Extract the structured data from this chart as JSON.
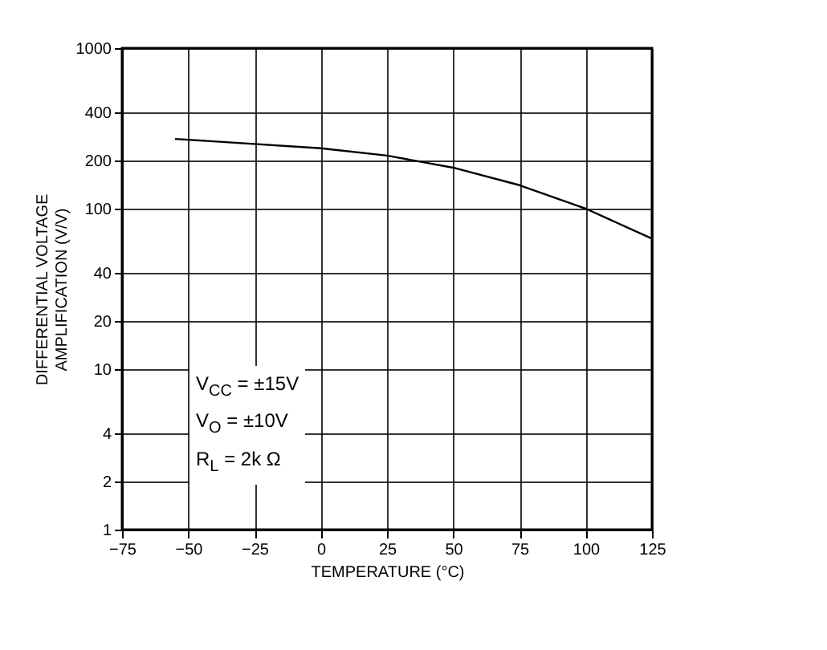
{
  "chart_data": {
    "type": "line",
    "xlabel": "TEMPERATURE (°C)",
    "ylabel": "DIFFERENTIAL VOLTAGE\nAMPLIFICATION (V/V)",
    "x": [
      -55,
      0,
      25,
      50,
      75,
      100,
      125
    ],
    "series": [
      {
        "color": "#000000",
        "values": [
          272,
          238,
          214,
          180,
          140,
          100,
          65
        ]
      }
    ],
    "xlim": [
      -75,
      125
    ],
    "xticks": [
      -75,
      -50,
      -25,
      0,
      25,
      50,
      75,
      100,
      125
    ],
    "ylim": [
      1,
      1000
    ],
    "yticks": [
      1,
      2,
      4,
      10,
      20,
      40,
      100,
      200,
      400,
      1000
    ],
    "log": true,
    "grid": true,
    "annotations": [
      "V$_{CC}$ = ±15V",
      "V$_{O}$ = ±10V",
      "R$_{L}$ = 2k Ω"
    ]
  }
}
